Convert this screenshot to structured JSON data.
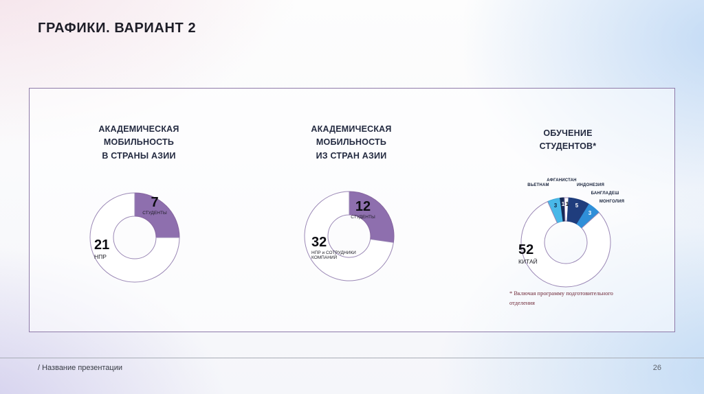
{
  "header": {
    "title": "ГРАФИКИ. ВАРИАНТ",
    "variant": "2"
  },
  "footer": {
    "presentation_name": "/ Название презентации",
    "page_number": "26"
  },
  "footnote": "* Включая программу подготовительного отделения",
  "colors": {
    "accent_purple": "#8e6fae",
    "ring_outline": "#9a87b5",
    "panel_border": "#8d79a8"
  },
  "chart_data": [
    {
      "type": "pie",
      "title": "АКАДЕМИЧЕСКАЯ\nМОБИЛЬНОСТЬ\nВ СТРАНЫ АЗИИ",
      "rotation": 0,
      "legend_position": "none",
      "segments": [
        {
          "label": "СТУДЕНТЫ",
          "value": 7,
          "color": "#8e6fae",
          "outline": "#86659f"
        },
        {
          "label": "НПР",
          "value": 21,
          "color": "#ffffff",
          "outline": "#9a87b5"
        }
      ]
    },
    {
      "type": "pie",
      "title": "АКАДЕМИЧЕСКАЯ\nМОБИЛЬНОСТЬ\nИЗ СТРАН АЗИИ",
      "rotation": 0,
      "legend_position": "none",
      "segments": [
        {
          "label": "СТУДЕНТЫ",
          "value": 12,
          "color": "#8e6fae",
          "outline": "#86659f"
        },
        {
          "label": "НПР и СОТРУДНИКИ КОМПАНИЙ",
          "value": 32,
          "color": "#ffffff",
          "outline": "#9a87b5"
        }
      ]
    },
    {
      "type": "pie",
      "title": "ОБУЧЕНИЕ\nСТУДЕНТОВ*",
      "rotation": -24,
      "legend_position": "callouts",
      "segments": [
        {
          "label": "ВЬЕТНАМ",
          "value": 3,
          "color": "#49b8e8",
          "outline": "#3fa9d8"
        },
        {
          "label": "АФГАНИСТАН",
          "value": 1,
          "color": "#172a56",
          "outline": "#172a56"
        },
        {
          "label": "ИНДОНЕЗИЯ",
          "value": 1,
          "color": "#ffffff",
          "outline": "#9a87b5"
        },
        {
          "label": "БАНГЛАДЕШ",
          "value": 5,
          "color": "#1f3d7d",
          "outline": "#1f3d7d"
        },
        {
          "label": "МОНГОЛИЯ",
          "value": 3,
          "color": "#2f8fd8",
          "outline": "#2f8fd8"
        },
        {
          "label": "КИТАЙ",
          "value": 52,
          "color": "#ffffff",
          "outline": "#9a87b5"
        }
      ]
    }
  ]
}
